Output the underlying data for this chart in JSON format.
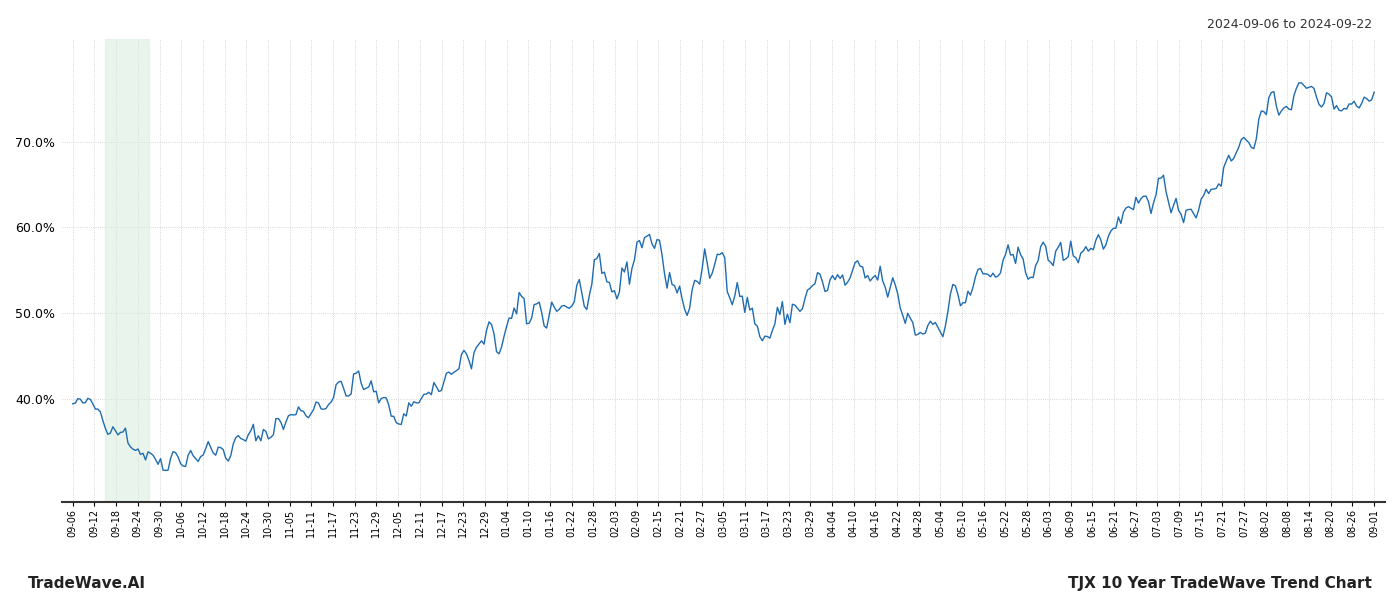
{
  "title_right": "2024-09-06 to 2024-09-22",
  "footer_left": "TradeWave.AI",
  "footer_right": "TJX 10 Year TradeWave Trend Chart",
  "line_color": "#1f6cb0",
  "line_width": 1.0,
  "background_color": "#ffffff",
  "highlight_color": "#d4edda",
  "highlight_alpha": 0.5,
  "ylim": [
    28,
    82
  ],
  "yticks": [
    40.0,
    50.0,
    60.0,
    70.0
  ],
  "xlabel_fontsize": 7.0,
  "ylabel_fontsize": 9,
  "grid_color": "#bbbbbb",
  "grid_style": ":",
  "grid_alpha": 0.8,
  "tick_labels": [
    "09-06",
    "09-12",
    "09-18",
    "09-24",
    "09-30",
    "10-06",
    "10-12",
    "10-18",
    "10-24",
    "10-30",
    "11-05",
    "11-11",
    "11-17",
    "11-23",
    "11-29",
    "12-05",
    "12-11",
    "12-17",
    "12-23",
    "12-29",
    "01-04",
    "01-10",
    "01-16",
    "01-22",
    "01-28",
    "02-03",
    "02-09",
    "02-15",
    "02-21",
    "02-27",
    "03-05",
    "03-11",
    "03-17",
    "03-23",
    "03-29",
    "04-04",
    "04-10",
    "04-16",
    "04-22",
    "04-28",
    "05-04",
    "05-10",
    "05-16",
    "05-22",
    "05-28",
    "06-03",
    "06-09",
    "06-15",
    "06-21",
    "06-27",
    "07-03",
    "07-09",
    "07-15",
    "07-21",
    "07-27",
    "08-02",
    "08-08",
    "08-14",
    "08-20",
    "08-26",
    "09-01"
  ]
}
